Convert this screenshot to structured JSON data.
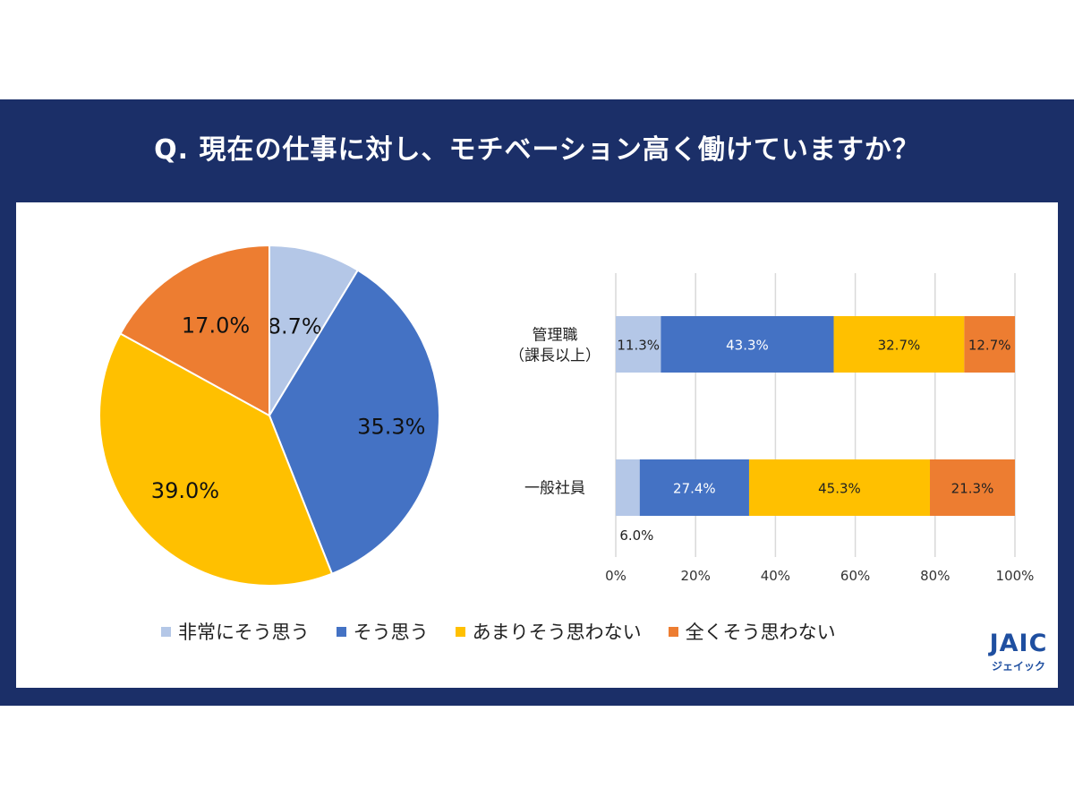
{
  "title": "Q. 現在の仕事に対し、モチベーション高く働けていますか？",
  "colors": {
    "very": "#b4c7e7",
    "agree": "#4472c4",
    "notmuch": "#ffc000",
    "not": "#ed7d31",
    "frame": "#1b2f68"
  },
  "chart_data": [
    {
      "type": "pie",
      "categories": [
        "非常にそう思う",
        "そう思う",
        "あまりそう思わない",
        "全くそう思わない"
      ],
      "values": [
        8.7,
        35.3,
        39.0,
        17.0
      ],
      "labels": [
        "8.7%",
        "35.3%",
        "39.0%",
        "17.0%"
      ]
    },
    {
      "type": "bar",
      "orientation": "horizontal",
      "stacked": true,
      "categories": [
        "管理職\n（課長以上）",
        "一般社員"
      ],
      "series": [
        {
          "name": "非常にそう思う",
          "values": [
            11.3,
            6.0
          ],
          "labels": [
            "11.3%",
            "6.0%"
          ]
        },
        {
          "name": "そう思う",
          "values": [
            43.3,
            27.4
          ],
          "labels": [
            "43.3%",
            "27.4%"
          ]
        },
        {
          "name": "あまりそう思わない",
          "values": [
            32.7,
            45.3
          ],
          "labels": [
            "32.7%",
            "45.3%"
          ]
        },
        {
          "name": "全くそう思わない",
          "values": [
            12.7,
            21.3
          ],
          "labels": [
            "12.7%",
            "21.3%"
          ]
        }
      ],
      "xlim": [
        0,
        100
      ],
      "xticks": [
        "0%",
        "20%",
        "40%",
        "60%",
        "80%",
        "100%"
      ],
      "grid": true
    }
  ],
  "legend": [
    {
      "label": "非常にそう思う",
      "color": "#b4c7e7"
    },
    {
      "label": "そう思う",
      "color": "#4472c4"
    },
    {
      "label": "あまりそう思わない",
      "color": "#ffc000"
    },
    {
      "label": "全くそう思わない",
      "color": "#ed7d31"
    }
  ],
  "logo": {
    "main": "JAIC",
    "sub": "ジェイック"
  }
}
